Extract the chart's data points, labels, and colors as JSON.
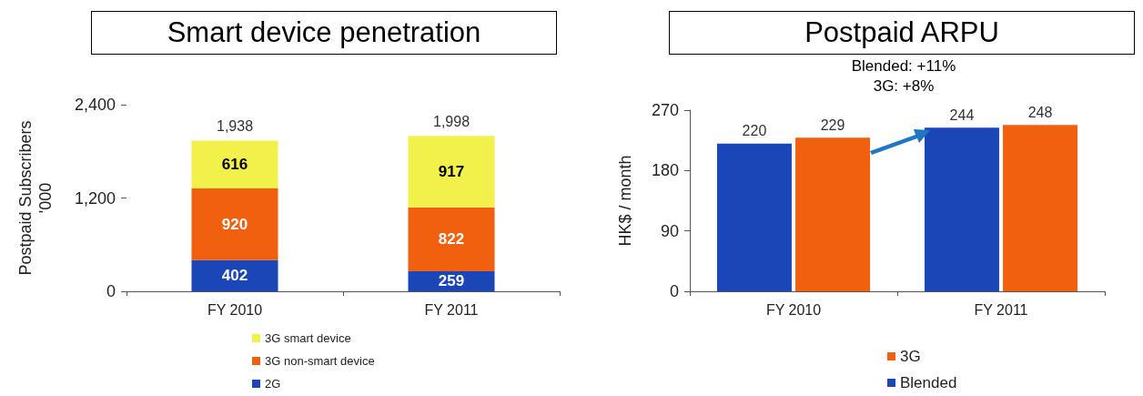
{
  "chart_data": [
    {
      "type": "bar",
      "title": "Smart device penetration",
      "ylabel": "Postpaid Subscribers\n'000",
      "categories": [
        "FY 2010",
        "FY 2011"
      ],
      "stacked": true,
      "series": [
        {
          "name": "2G",
          "color": "#1a46b8",
          "values": [
            402,
            259
          ]
        },
        {
          "name": "3G non-smart device",
          "color": "#f0600f",
          "values": [
            920,
            822
          ]
        },
        {
          "name": "3G smart device",
          "color": "#f2f04a",
          "values": [
            616,
            917
          ]
        }
      ],
      "totals": [
        "1,938",
        "1,998"
      ],
      "data_labels": true,
      "ylim": [
        0,
        2400
      ],
      "yticks": [
        {
          "value": 0,
          "label": "0"
        },
        {
          "value": 1200,
          "label": "1,200"
        },
        {
          "value": 2400,
          "label": "2,400"
        }
      ],
      "grid": false,
      "legend": "bottom"
    },
    {
      "type": "bar",
      "title": "Postpaid ARPU",
      "ylabel": "HK$ / month",
      "categories": [
        "FY 2010",
        "FY 2011"
      ],
      "series": [
        {
          "name": "Blended",
          "color": "#1a46b8",
          "values": [
            220,
            244
          ]
        },
        {
          "name": "3G",
          "color": "#f0600f",
          "values": [
            229,
            248
          ]
        }
      ],
      "data_labels": true,
      "annotations": [
        "Blended: +11%",
        "3G: +8%"
      ],
      "ylim": [
        0,
        270
      ],
      "yticks": [
        0,
        90,
        180,
        270
      ],
      "grid": false,
      "legend": "bottom"
    }
  ]
}
